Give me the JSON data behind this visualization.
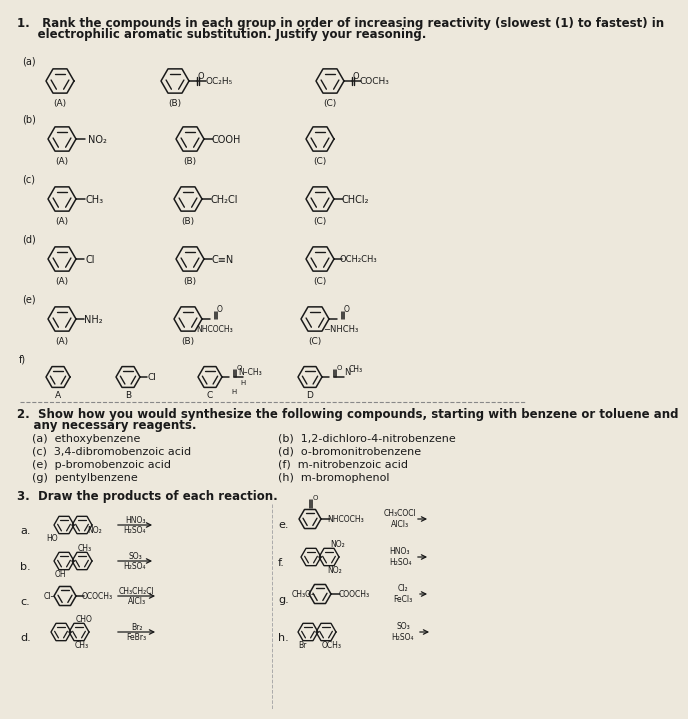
{
  "background_color": "#ede8dc",
  "title_q1_line1": "1.   Rank the compounds in each group in order of increasing reactivity (slowest (1) to fastest) in",
  "title_q1_line2": "     electrophilic aromatic substitution. Justify your reasoning.",
  "q2_title_line1": "2.  Show how you would synthesize the following compounds, starting with benzene or toluene and",
  "q2_title_line2": "    any necessary reagents.",
  "q2_left": [
    "(a)  ethoxybenzene",
    "(c)  3,4-dibromobenzoic acid",
    "(e)  p-bromobenzoic acid",
    "(g)  pentylbenzene"
  ],
  "q2_right": [
    "(b)  1,2-dichloro-4-nitrobenzene",
    "(d)  o-bromonitrobenzene",
    "(f)  m-nitrobenzoic acid",
    "(h)  m-bromophenol"
  ],
  "q3_title": "3.  Draw the products of each reaction.",
  "ring_color": "#1a1a1a",
  "text_color": "#1a1a1a",
  "fs_header": 8.5,
  "fs_body": 8.0,
  "fs_label": 7.0,
  "fs_sub": 6.5,
  "fs_small": 6.0
}
